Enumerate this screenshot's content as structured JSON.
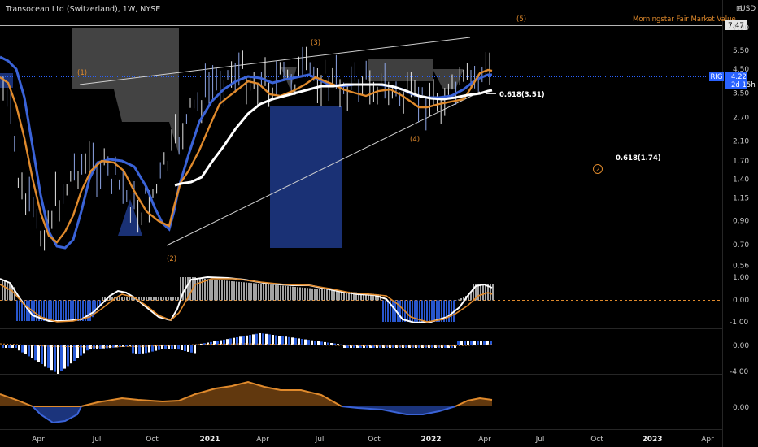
{
  "header": {
    "title": "Transocean Ltd (Switzerland), 1W, NYSE",
    "currency": "USD"
  },
  "price_axis": {
    "ticks": [
      "7.00",
      "5.50",
      "4.50",
      "3.50",
      "2.70",
      "2.10",
      "1.70",
      "1.40",
      "1.15",
      "0.90",
      "0.70",
      "0.56"
    ],
    "fair_value_label": "7.47",
    "symbol_label": "RIG",
    "last_price_label": "4.22",
    "countdown_label": "2d 15h"
  },
  "osc1_axis": {
    "ticks": [
      "1.00",
      "0.00",
      "-1.00"
    ]
  },
  "osc2_axis": {
    "ticks": [
      "0.00",
      "-4.00"
    ]
  },
  "osc3_axis": {
    "ticks": [
      "0.00"
    ]
  },
  "time_axis": {
    "ticks": [
      "Apr",
      "Jul",
      "Oct",
      "2021",
      "Apr",
      "Jul",
      "Oct",
      "2022",
      "Apr",
      "Jul",
      "Oct",
      "2023",
      "Apr"
    ],
    "bold": [
      false,
      false,
      false,
      true,
      false,
      false,
      false,
      true,
      false,
      false,
      false,
      true,
      false
    ]
  },
  "annotations": {
    "fair_value_text": "Morningstar Fair Market Value",
    "wave_1": "(1)",
    "wave_2": "(2)",
    "wave_3": "(3)",
    "wave_4": "(4)",
    "wave_5": "(5)",
    "wave_2_minor": "2",
    "fib_upper": "0.618(3.51)",
    "fib_lower": "0.618(1.74)"
  },
  "colors": {
    "background": "#000000",
    "ma_blue": "#3a63d8",
    "ma_orange": "#e08a2c",
    "ma_white": "#ffffff",
    "label_blue": "#2962ff",
    "grey_zone": "#5a5a5a",
    "blue_zone": "#1e3a8a"
  },
  "chart_data": [
    {
      "type": "line",
      "title": "Transocean Ltd (Switzerland), 1W, NYSE",
      "scale": "log",
      "ylim": [
        0.53,
        7.9
      ],
      "x": [
        "2020-03",
        "2020-04",
        "2020-05",
        "2020-06",
        "2020-07",
        "2020-08",
        "2020-09",
        "2020-10",
        "2020-11",
        "2020-12",
        "2021-01",
        "2021-02",
        "2021-03",
        "2021-04",
        "2021-05",
        "2021-06",
        "2021-07",
        "2021-08",
        "2021-09",
        "2021-10",
        "2021-11",
        "2021-12",
        "2022-01",
        "2022-02",
        "2022-03",
        "2022-04"
      ],
      "series": [
        {
          "name": "",
          "values": [
            2.3,
            0.8,
            1.2,
            2.2,
            1.7,
            1.3,
            0.95,
            0.75,
            1.5,
            2.3,
            3.2,
            3.8,
            4.3,
            3.5,
            3.8,
            4.3,
            4.6,
            3.6,
            3.8,
            4.0,
            3.2,
            2.85,
            3.1,
            3.4,
            4.8,
            4.22
          ]
        },
        {
          "name": "",
          "values": [
            4.0,
            1.2,
            0.75,
            1.1,
            1.6,
            1.55,
            1.3,
            0.95,
            1.25,
            2.0,
            3.0,
            3.8,
            4.3,
            3.9,
            3.8,
            4.1,
            4.2,
            3.7,
            3.75,
            3.9,
            3.4,
            3.1,
            3.2,
            3.3,
            3.9,
            4.3
          ]
        },
        {
          "name": "",
          "values": [
            2.5,
            1.2,
            0.85,
            1.7,
            1.8,
            1.5,
            1.1,
            0.85,
            1.3,
            2.1,
            3.0,
            3.7,
            4.2,
            3.8,
            3.9,
            4.3,
            4.3,
            3.8,
            3.85,
            4.0,
            3.3,
            3.0,
            3.2,
            3.4,
            3.9,
            4.35
          ]
        },
        {
          "name": "",
          "values": [
            null,
            null,
            null,
            null,
            null,
            null,
            1.3,
            1.25,
            1.2,
            1.3,
            1.7,
            2.4,
            3.0,
            3.4,
            3.6,
            3.8,
            3.9,
            3.9,
            3.95,
            4.0,
            3.95,
            3.85,
            3.65,
            3.45,
            3.4,
            3.7
          ]
        }
      ],
      "levels": {
        "morningstar_fair_value": 7.47,
        "last_price": 4.22,
        "fib_upper": 3.51,
        "fib_lower": 1.74
      },
      "grid": false
    },
    {
      "type": "area",
      "ylim": [
        -1.3,
        1.3
      ],
      "ticks": [
        1.0,
        0.0,
        -1.0
      ]
    },
    {
      "type": "bar",
      "ylim": [
        -5,
        1.6
      ],
      "ticks": [
        0.0,
        -4.0
      ]
    },
    {
      "type": "area",
      "ticks": [
        0.0
      ]
    }
  ]
}
